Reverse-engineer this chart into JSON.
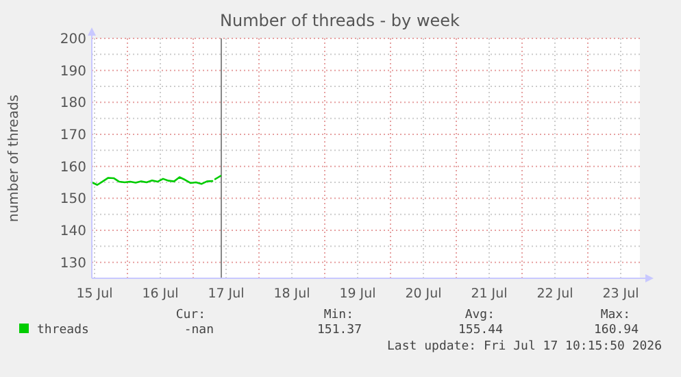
{
  "chart_data": {
    "type": "line",
    "title": "Number of threads - by week",
    "ylabel": "number of threads",
    "x": [
      "2026-07-15T11:00",
      "2026-07-15T13:00",
      "2026-07-15T15:00",
      "2026-07-15T17:00",
      "2026-07-15T19:00",
      "2026-07-15T21:00",
      "2026-07-15T23:00",
      "2026-07-16T01:00",
      "2026-07-16T03:00",
      "2026-07-16T05:00",
      "2026-07-16T07:00",
      "2026-07-16T09:00",
      "2026-07-16T11:00",
      "2026-07-16T13:00",
      "2026-07-16T15:00",
      "2026-07-16T17:00",
      "2026-07-16T19:00",
      "2026-07-16T21:00",
      "2026-07-16T23:00",
      "2026-07-17T01:00",
      "2026-07-17T03:00",
      "2026-07-17T05:00",
      "2026-07-17T07:00"
    ],
    "series": [
      {
        "name": "threads",
        "color": "#00cc00",
        "values": [
          155.0,
          154.2,
          155.3,
          156.4,
          156.3,
          155.2,
          155.0,
          155.2,
          154.9,
          155.3,
          155.0,
          155.6,
          155.2,
          156.1,
          155.5,
          155.3,
          156.6,
          155.8,
          154.8,
          155.0,
          154.5,
          155.3,
          155.4
        ]
      },
      {
        "color": "#00cc00",
        "x": [
          "2026-07-17T08:00",
          "2026-07-17T09:00",
          "2026-07-17T10:00"
        ],
        "values": [
          156.0,
          156.5,
          157.0
        ]
      }
    ],
    "xlim": [
      "2026-07-15T11:00",
      "2026-07-23T19:00"
    ],
    "xticks": [
      {
        "value": "2026-07-15T12:00",
        "label": "15 Jul"
      },
      {
        "value": "2026-07-16T00:00",
        "label": null
      },
      {
        "value": "2026-07-16T12:00",
        "label": "16 Jul"
      },
      {
        "value": "2026-07-17T00:00",
        "label": null
      },
      {
        "value": "2026-07-17T12:00",
        "label": "17 Jul"
      },
      {
        "value": "2026-07-18T00:00",
        "label": null
      },
      {
        "value": "2026-07-18T12:00",
        "label": "18 Jul"
      },
      {
        "value": "2026-07-19T00:00",
        "label": null
      },
      {
        "value": "2026-07-19T12:00",
        "label": "19 Jul"
      },
      {
        "value": "2026-07-20T00:00",
        "label": null
      },
      {
        "value": "2026-07-20T12:00",
        "label": "20 Jul"
      },
      {
        "value": "2026-07-21T00:00",
        "label": null
      },
      {
        "value": "2026-07-21T12:00",
        "label": "21 Jul"
      },
      {
        "value": "2026-07-22T00:00",
        "label": null
      },
      {
        "value": "2026-07-22T12:00",
        "label": "22 Jul"
      },
      {
        "value": "2026-07-23T00:00",
        "label": null
      },
      {
        "value": "2026-07-23T12:00",
        "label": "23 Jul"
      }
    ],
    "ylim": [
      125,
      200
    ],
    "yticks": [
      130,
      {
        "value": 135,
        "label": null
      },
      140,
      {
        "value": 145,
        "label": null
      },
      150,
      {
        "value": 155,
        "label": null
      },
      160,
      {
        "value": 165,
        "label": null
      },
      170,
      {
        "value": 175,
        "label": null
      },
      180,
      {
        "value": 185,
        "label": null
      },
      190,
      {
        "value": 195,
        "label": null
      },
      200
    ],
    "ref_lines": [
      {
        "axis": "x",
        "value": "2026-07-17T10:15",
        "label": null,
        "color": "#888888"
      }
    ],
    "grid": true,
    "legend": "bottom left",
    "line_style": "solid",
    "marker": "none",
    "annotations": [
      "Cur:",
      "Min:",
      "Avg:",
      "Max:",
      "-nan",
      "151.37",
      "155.44",
      "160.94",
      "Last update: Fri Jul 17 10:15:50 2026"
    ]
  }
}
